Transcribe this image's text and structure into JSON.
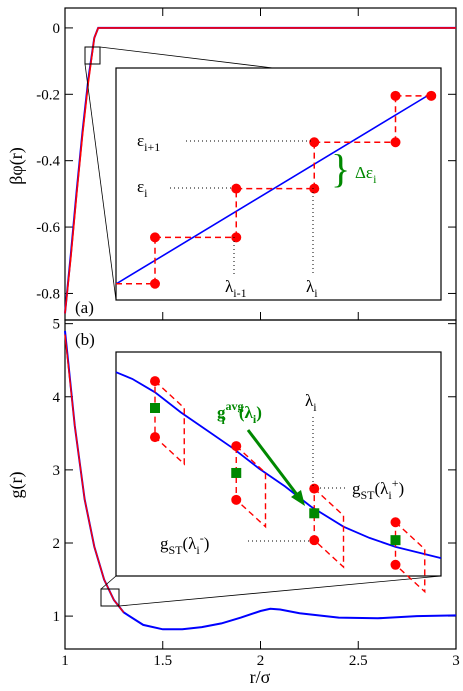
{
  "chart_data": [
    {
      "type": "line",
      "panel_label": "(a)",
      "ylabel": "βφ(r)",
      "xlim": [
        1,
        3
      ],
      "ylim": [
        -0.88,
        0.06
      ],
      "y_ticks": [
        "0",
        "-0.2",
        "-0.4",
        "-0.6",
        "-0.8"
      ],
      "y_tick_values": [
        0,
        -0.2,
        -0.4,
        -0.6,
        -0.8
      ],
      "series": [
        {
          "color": "#0000ff",
          "x": [
            1.0,
            1.03,
            1.06,
            1.09,
            1.12,
            1.15,
            1.17,
            1.2,
            3.0
          ],
          "y": [
            -0.86,
            -0.68,
            -0.49,
            -0.31,
            -0.15,
            -0.03,
            0.0,
            0.0,
            0.0
          ]
        },
        {
          "color": "#ff0000",
          "x": [
            1.0,
            1.03,
            1.06,
            1.09,
            1.12,
            1.15,
            1.17,
            1.2,
            3.0
          ],
          "y": [
            -0.86,
            -0.69,
            -0.5,
            -0.32,
            -0.16,
            -0.03,
            0.0,
            0.0,
            0.0
          ]
        }
      ],
      "inset": {
        "source_box_x": [
          1.13,
          1.17
        ],
        "source_box_y": [
          -0.075,
          -0.035
        ],
        "steps": [
          {
            "x": [
              0.03,
              0.17
            ],
            "y": 0.12,
            "drop_to": 0.27
          },
          {
            "x": [
              0.17,
              0.51
            ],
            "y": 0.36
          },
          {
            "x": [
              0.51,
              0.83
            ],
            "y": 0.6
          },
          {
            "x": [
              0.83,
              0.99
            ],
            "y": 0.84
          },
          {
            "x": [
              0.51,
              0.8
            ],
            "y": 0.72
          }
        ],
        "labels": {
          "eps_next": "ε",
          "eps_next_sub": "i+1",
          "eps": "ε",
          "eps_sub": "i",
          "lam_prev": "λ",
          "lam_prev_sub": "i-1",
          "lam": "λ",
          "lam_sub": "i",
          "delta": "Δε",
          "delta_sub": "i"
        }
      }
    },
    {
      "type": "line",
      "panel_label": "(b)",
      "xlabel": "r/σ",
      "ylabel": "g(r)",
      "xlim": [
        1,
        3
      ],
      "ylim": [
        0.55,
        5.05
      ],
      "x_ticks": [
        "1",
        "1.5",
        "2",
        "2.5",
        "3"
      ],
      "x_tick_values": [
        1,
        1.5,
        2,
        2.5,
        3
      ],
      "y_ticks": [
        "1",
        "2",
        "3",
        "4",
        "5"
      ],
      "y_tick_values": [
        1,
        2,
        3,
        4,
        5
      ],
      "series": [
        {
          "color": "#0000ff",
          "x": [
            1.0,
            1.05,
            1.1,
            1.15,
            1.2,
            1.25,
            1.3,
            1.4,
            1.5,
            1.6,
            1.7,
            1.8,
            1.9,
            2.0,
            2.05,
            2.1,
            2.2,
            2.4,
            2.6,
            2.8,
            3.0
          ],
          "y": [
            4.9,
            3.6,
            2.6,
            1.95,
            1.5,
            1.22,
            1.05,
            0.88,
            0.82,
            0.82,
            0.85,
            0.9,
            0.98,
            1.07,
            1.1,
            1.09,
            1.04,
            0.98,
            0.97,
            1.0,
            1.01
          ]
        },
        {
          "color": "#ff0000",
          "x": [
            1.0,
            1.05,
            1.1,
            1.15,
            1.2,
            1.25,
            1.3
          ],
          "y": [
            4.85,
            3.6,
            2.6,
            1.95,
            1.5,
            1.22,
            1.05
          ]
        }
      ],
      "inset": {
        "source_box_x": [
          1.2,
          1.27
        ],
        "source_box_y": [
          1.2,
          1.4
        ],
        "curve_y": [
          0.09,
          0.12,
          0.18,
          0.27,
          0.35,
          0.43,
          0.52,
          0.6,
          0.69,
          0.78,
          0.83,
          0.87,
          0.92
        ],
        "curve_x": [
          0.0,
          0.05,
          0.12,
          0.2,
          0.28,
          0.36,
          0.44,
          0.52,
          0.6,
          0.7,
          0.78,
          0.86,
          1.0
        ],
        "averages": [
          {
            "x": 0.22,
            "y": 0.28
          },
          {
            "x": 0.51,
            "y": 0.51
          },
          {
            "x": 0.8,
            "y": 0.73
          },
          {
            "x": 0.93,
            "y": 0.86
          }
        ],
        "labels": {
          "avg": "g",
          "avg_sub": "i",
          "avg_sup": "avg",
          "avg_arg": "(λ",
          "avg_arg_sub": "i",
          "avg_close": ")",
          "lam": "λ",
          "lam_sub": "i",
          "plus": "g",
          "plus_sub": "ST",
          "plus_arg": "(λ",
          "plus_arg_sub": "i",
          "plus_arg_sup": "+",
          "plus_close": ")",
          "minus": "g",
          "minus_sub": "ST",
          "minus_arg": "(λ",
          "minus_arg_sub": "i",
          "minus_arg_sup": "-",
          "minus_close": ")"
        }
      }
    }
  ]
}
